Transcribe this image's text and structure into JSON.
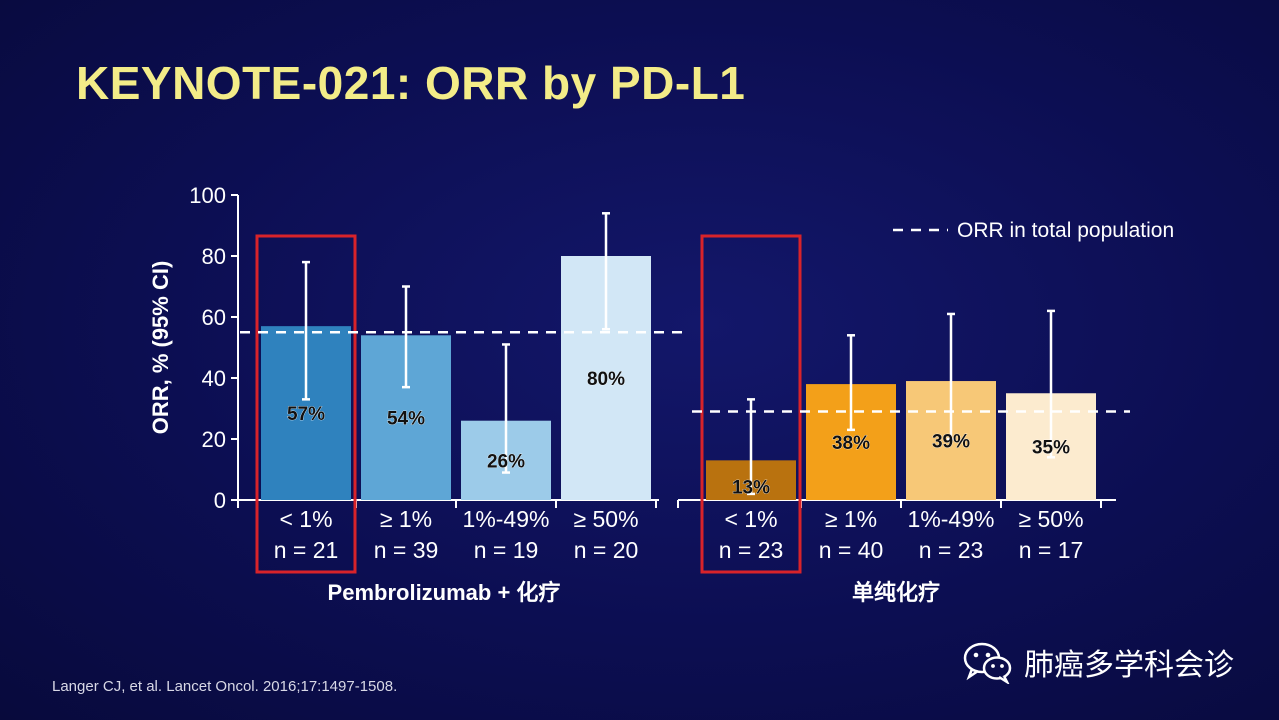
{
  "slide": {
    "title": "KEYNOTE-021: ORR by PD-L1",
    "footnote": "Langer CJ, et al. Lancet Oncol. 2016;17:1497-1508.",
    "watermark": "肺癌多学科会诊",
    "watermark_icon": "wechat-icon"
  },
  "chart_data": {
    "type": "bar",
    "ylabel": "ORR, % (95% CI)",
    "ylim": [
      0,
      100
    ],
    "yticks": [
      0,
      20,
      40,
      60,
      80,
      100
    ],
    "legend": {
      "label": "ORR in total population",
      "placement": "top-right",
      "style": "dashed"
    },
    "groups": [
      {
        "name": "Pembrolizumab + 化疗",
        "reference_orr": 55,
        "bars": [
          {
            "category": "< 1%",
            "n": "n = 21",
            "value": 57,
            "label": "57%",
            "ci": [
              33,
              78
            ],
            "color": "#2f82be",
            "highlighted": true
          },
          {
            "category": "≥ 1%",
            "n": "n = 39",
            "value": 54,
            "label": "54%",
            "ci": [
              37,
              70
            ],
            "color": "#5ea6d6",
            "highlighted": false
          },
          {
            "category": "1%-49%",
            "n": "n = 19",
            "value": 26,
            "label": "26%",
            "ci": [
              9,
              51
            ],
            "color": "#9ccbe9",
            "highlighted": false
          },
          {
            "category": "≥ 50%",
            "n": "n = 20",
            "value": 80,
            "label": "80%",
            "ci": [
              56,
              94
            ],
            "color": "#d2e7f6",
            "highlighted": false
          }
        ]
      },
      {
        "name": "单纯化疗",
        "reference_orr": 29,
        "bars": [
          {
            "category": "< 1%",
            "n": "n = 23",
            "value": 13,
            "label": "13%",
            "ci": [
              2,
              33
            ],
            "color": "#b9720f",
            "highlighted": true
          },
          {
            "category": "≥ 1%",
            "n": "n = 40",
            "value": 38,
            "label": "38%",
            "ci": [
              23,
              54
            ],
            "color": "#f3a019",
            "highlighted": false
          },
          {
            "category": "1%-49%",
            "n": "n = 23",
            "value": 39,
            "label": "39%",
            "ci": [
              20,
              61
            ],
            "color": "#f7c877",
            "highlighted": false
          },
          {
            "category": "≥ 50%",
            "n": "n = 17",
            "value": 35,
            "label": "35%",
            "ci": [
              14,
              62
            ],
            "color": "#fcebcf",
            "highlighted": false
          }
        ]
      }
    ]
  }
}
